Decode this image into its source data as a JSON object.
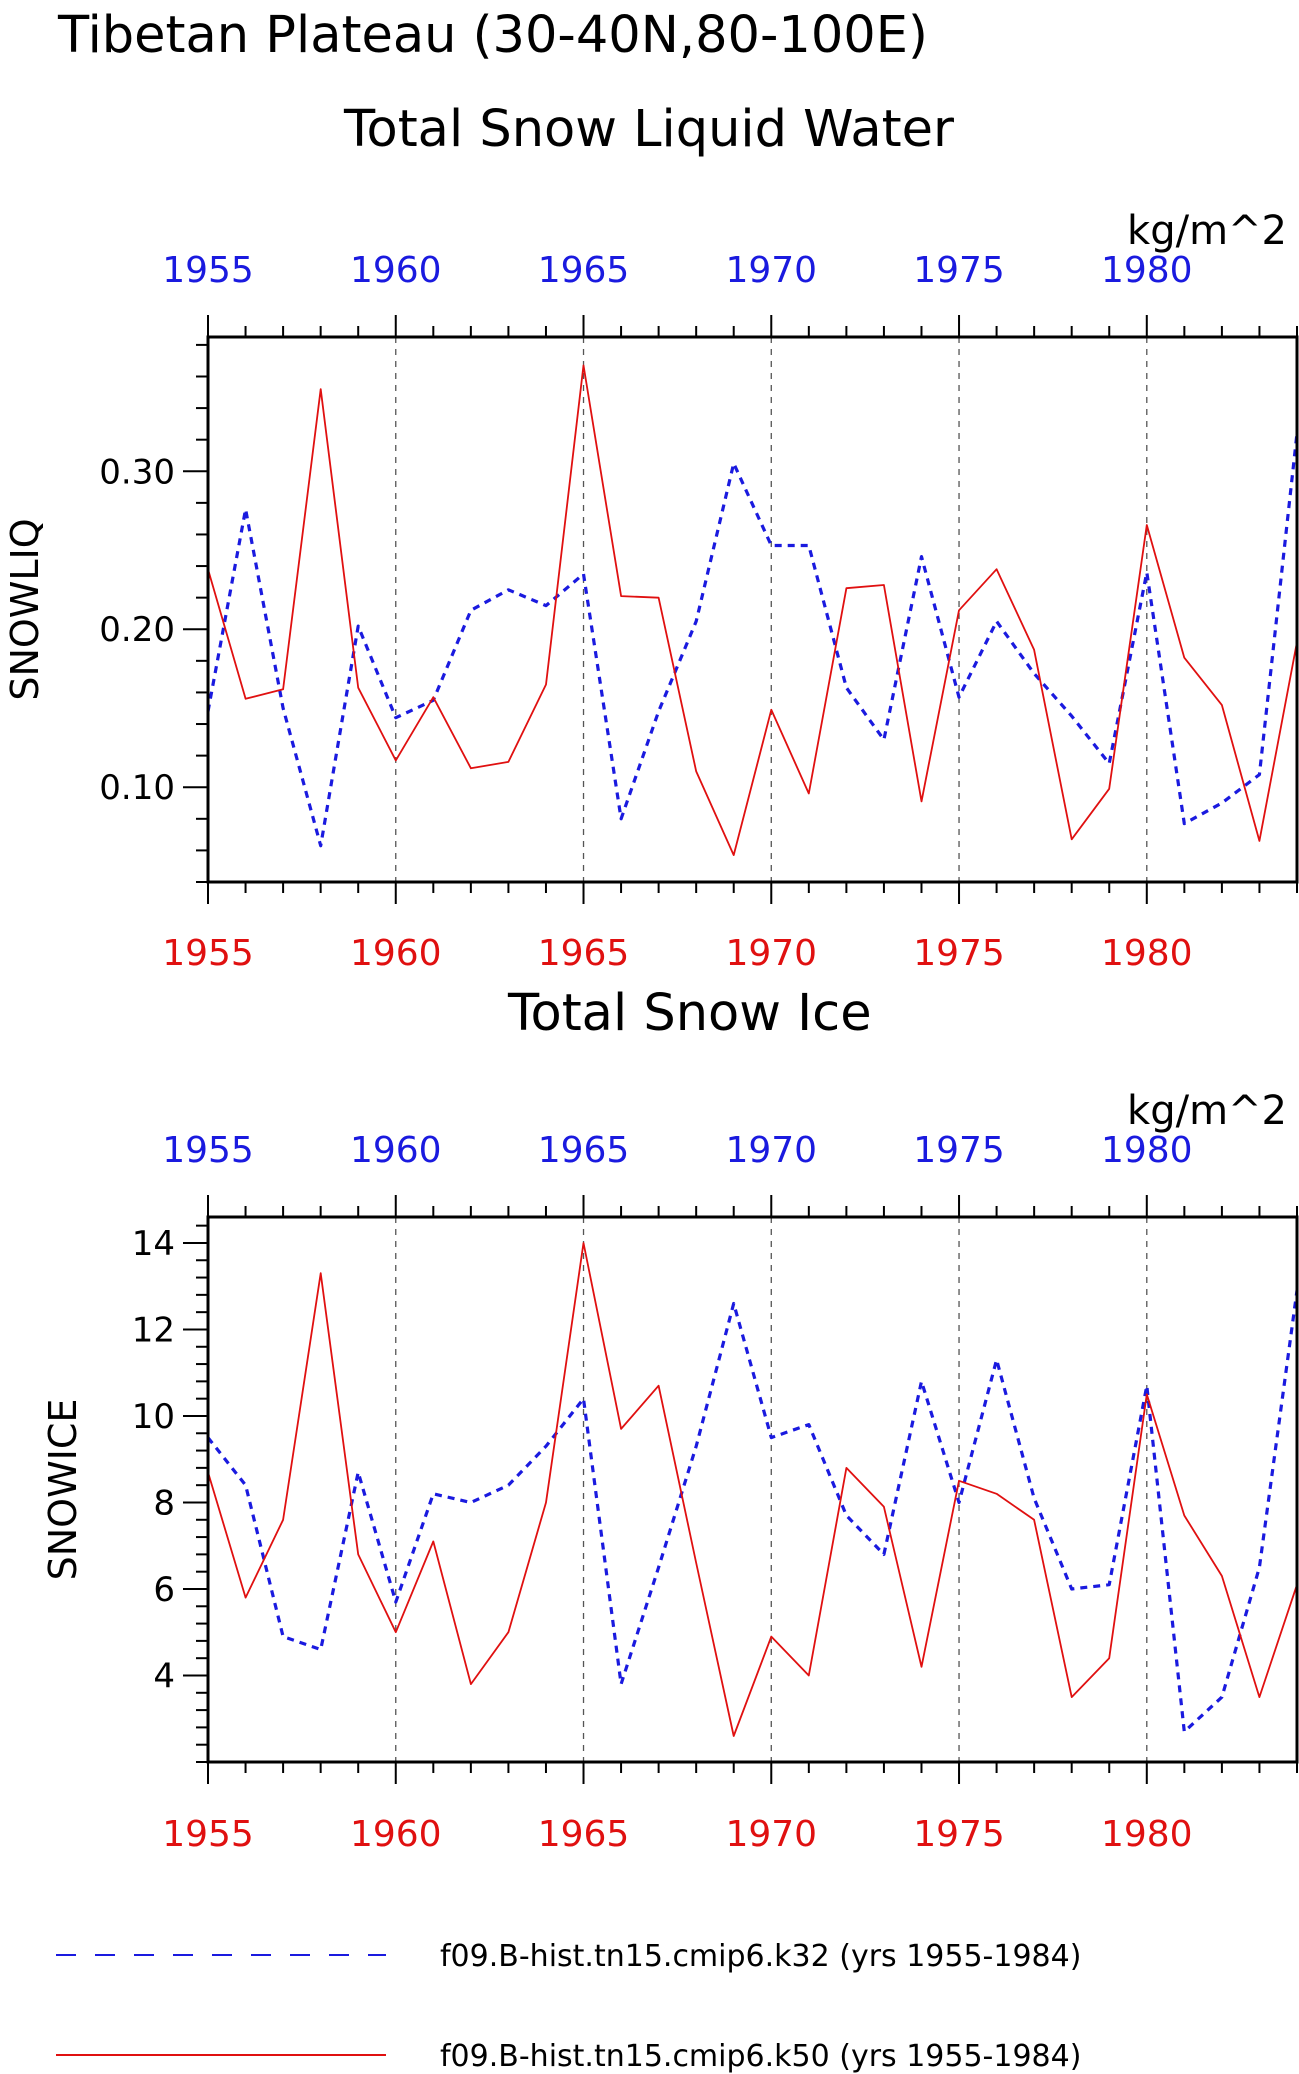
{
  "figure": {
    "title_line1": "Tibetan Plateau (30-40N,80-100E)",
    "colors": {
      "k32": "#1a1adf",
      "k50": "#e01010",
      "axis": "#000000",
      "grid": "#555555"
    }
  },
  "legend": [
    {
      "label": "f09.B-hist.tn15.cmip6.k32 (yrs 1955-1984)",
      "style": "dashed",
      "color": "#1a1adf"
    },
    {
      "label": "f09.B-hist.tn15.cmip6.k50 (yrs 1955-1984)",
      "style": "solid",
      "color": "#e01010"
    }
  ],
  "chart_data": [
    {
      "type": "line",
      "title": "Total Snow Liquid Water",
      "ylabel": "SNOWLIQ",
      "units": "kg/m^2",
      "xlim": [
        1955,
        1984
      ],
      "ylim": [
        0.04,
        0.385
      ],
      "yticks": [
        0.1,
        0.2,
        0.3
      ],
      "ytick_labels": [
        "0.10",
        "0.20",
        "0.30"
      ],
      "xticks": [
        1955,
        1960,
        1965,
        1970,
        1975,
        1980
      ],
      "xtick_labels": [
        "1955",
        "1960",
        "1965",
        "1970",
        "1975",
        "1980"
      ],
      "top_xtick_labels": [
        "1955",
        "1960",
        "1965",
        "1970",
        "1975",
        "1980"
      ],
      "grid": "dashed vertical at major x ticks",
      "x": [
        1955,
        1956,
        1957,
        1958,
        1959,
        1960,
        1961,
        1962,
        1963,
        1964,
        1965,
        1966,
        1967,
        1968,
        1969,
        1970,
        1971,
        1972,
        1973,
        1974,
        1975,
        1976,
        1977,
        1978,
        1979,
        1980,
        1981,
        1982,
        1983,
        1984
      ],
      "series": [
        {
          "name": "f09.B-hist.tn15.cmip6.k32 (yrs 1955-1984)",
          "style": "dashed",
          "values": [
            0.148,
            0.276,
            0.15,
            0.063,
            0.202,
            0.144,
            0.155,
            0.212,
            0.225,
            0.215,
            0.235,
            0.08,
            0.148,
            0.205,
            0.305,
            0.253,
            0.253,
            0.163,
            0.13,
            0.246,
            0.157,
            0.205,
            0.172,
            0.145,
            0.115,
            0.236,
            0.077,
            0.09,
            0.108,
            0.324
          ]
        },
        {
          "name": "f09.B-hist.tn15.cmip6.k50 (yrs 1955-1984)",
          "style": "solid",
          "values": [
            0.238,
            0.156,
            0.162,
            0.352,
            0.163,
            0.117,
            0.157,
            0.112,
            0.116,
            0.165,
            0.367,
            0.221,
            0.22,
            0.11,
            0.057,
            0.149,
            0.096,
            0.226,
            0.228,
            0.091,
            0.212,
            0.238,
            0.187,
            0.067,
            0.099,
            0.266,
            0.182,
            0.152,
            0.066,
            0.192
          ]
        }
      ]
    },
    {
      "type": "line",
      "title": "Total Snow Ice",
      "ylabel": "SNOWICE",
      "units": "kg/m^2",
      "xlim": [
        1955,
        1984
      ],
      "ylim": [
        2.0,
        14.6
      ],
      "yticks": [
        4,
        6,
        8,
        10,
        12,
        14
      ],
      "ytick_labels": [
        "4",
        "6",
        "8",
        "10",
        "12",
        "14"
      ],
      "xticks": [
        1955,
        1960,
        1965,
        1970,
        1975,
        1980
      ],
      "xtick_labels": [
        "1955",
        "1960",
        "1965",
        "1970",
        "1975",
        "1980"
      ],
      "top_xtick_labels": [
        "1955",
        "1960",
        "1965",
        "1970",
        "1975",
        "1980"
      ],
      "grid": "dashed vertical at major x ticks",
      "x": [
        1955,
        1956,
        1957,
        1958,
        1959,
        1960,
        1961,
        1962,
        1963,
        1964,
        1965,
        1966,
        1967,
        1968,
        1969,
        1970,
        1971,
        1972,
        1973,
        1974,
        1975,
        1976,
        1977,
        1978,
        1979,
        1980,
        1981,
        1982,
        1983,
        1984
      ],
      "series": [
        {
          "name": "f09.B-hist.tn15.cmip6.k32 (yrs 1955-1984)",
          "style": "dashed",
          "values": [
            9.5,
            8.4,
            4.9,
            4.6,
            8.7,
            5.7,
            8.2,
            8.0,
            8.4,
            9.3,
            10.4,
            3.8,
            6.5,
            9.3,
            12.6,
            9.5,
            9.8,
            7.7,
            6.8,
            10.8,
            8.0,
            11.3,
            8.1,
            6.0,
            6.1,
            10.7,
            2.7,
            3.5,
            6.5,
            12.9
          ]
        },
        {
          "name": "f09.B-hist.tn15.cmip6.k50 (yrs 1955-1984)",
          "style": "solid",
          "values": [
            8.7,
            5.8,
            7.6,
            13.3,
            6.8,
            5.0,
            7.1,
            3.8,
            5.0,
            8.0,
            14.0,
            9.7,
            10.7,
            6.6,
            2.6,
            4.9,
            4.0,
            8.8,
            7.9,
            4.2,
            8.5,
            8.2,
            7.6,
            3.5,
            4.4,
            10.5,
            7.7,
            6.3,
            3.5,
            6.1
          ]
        }
      ]
    }
  ]
}
